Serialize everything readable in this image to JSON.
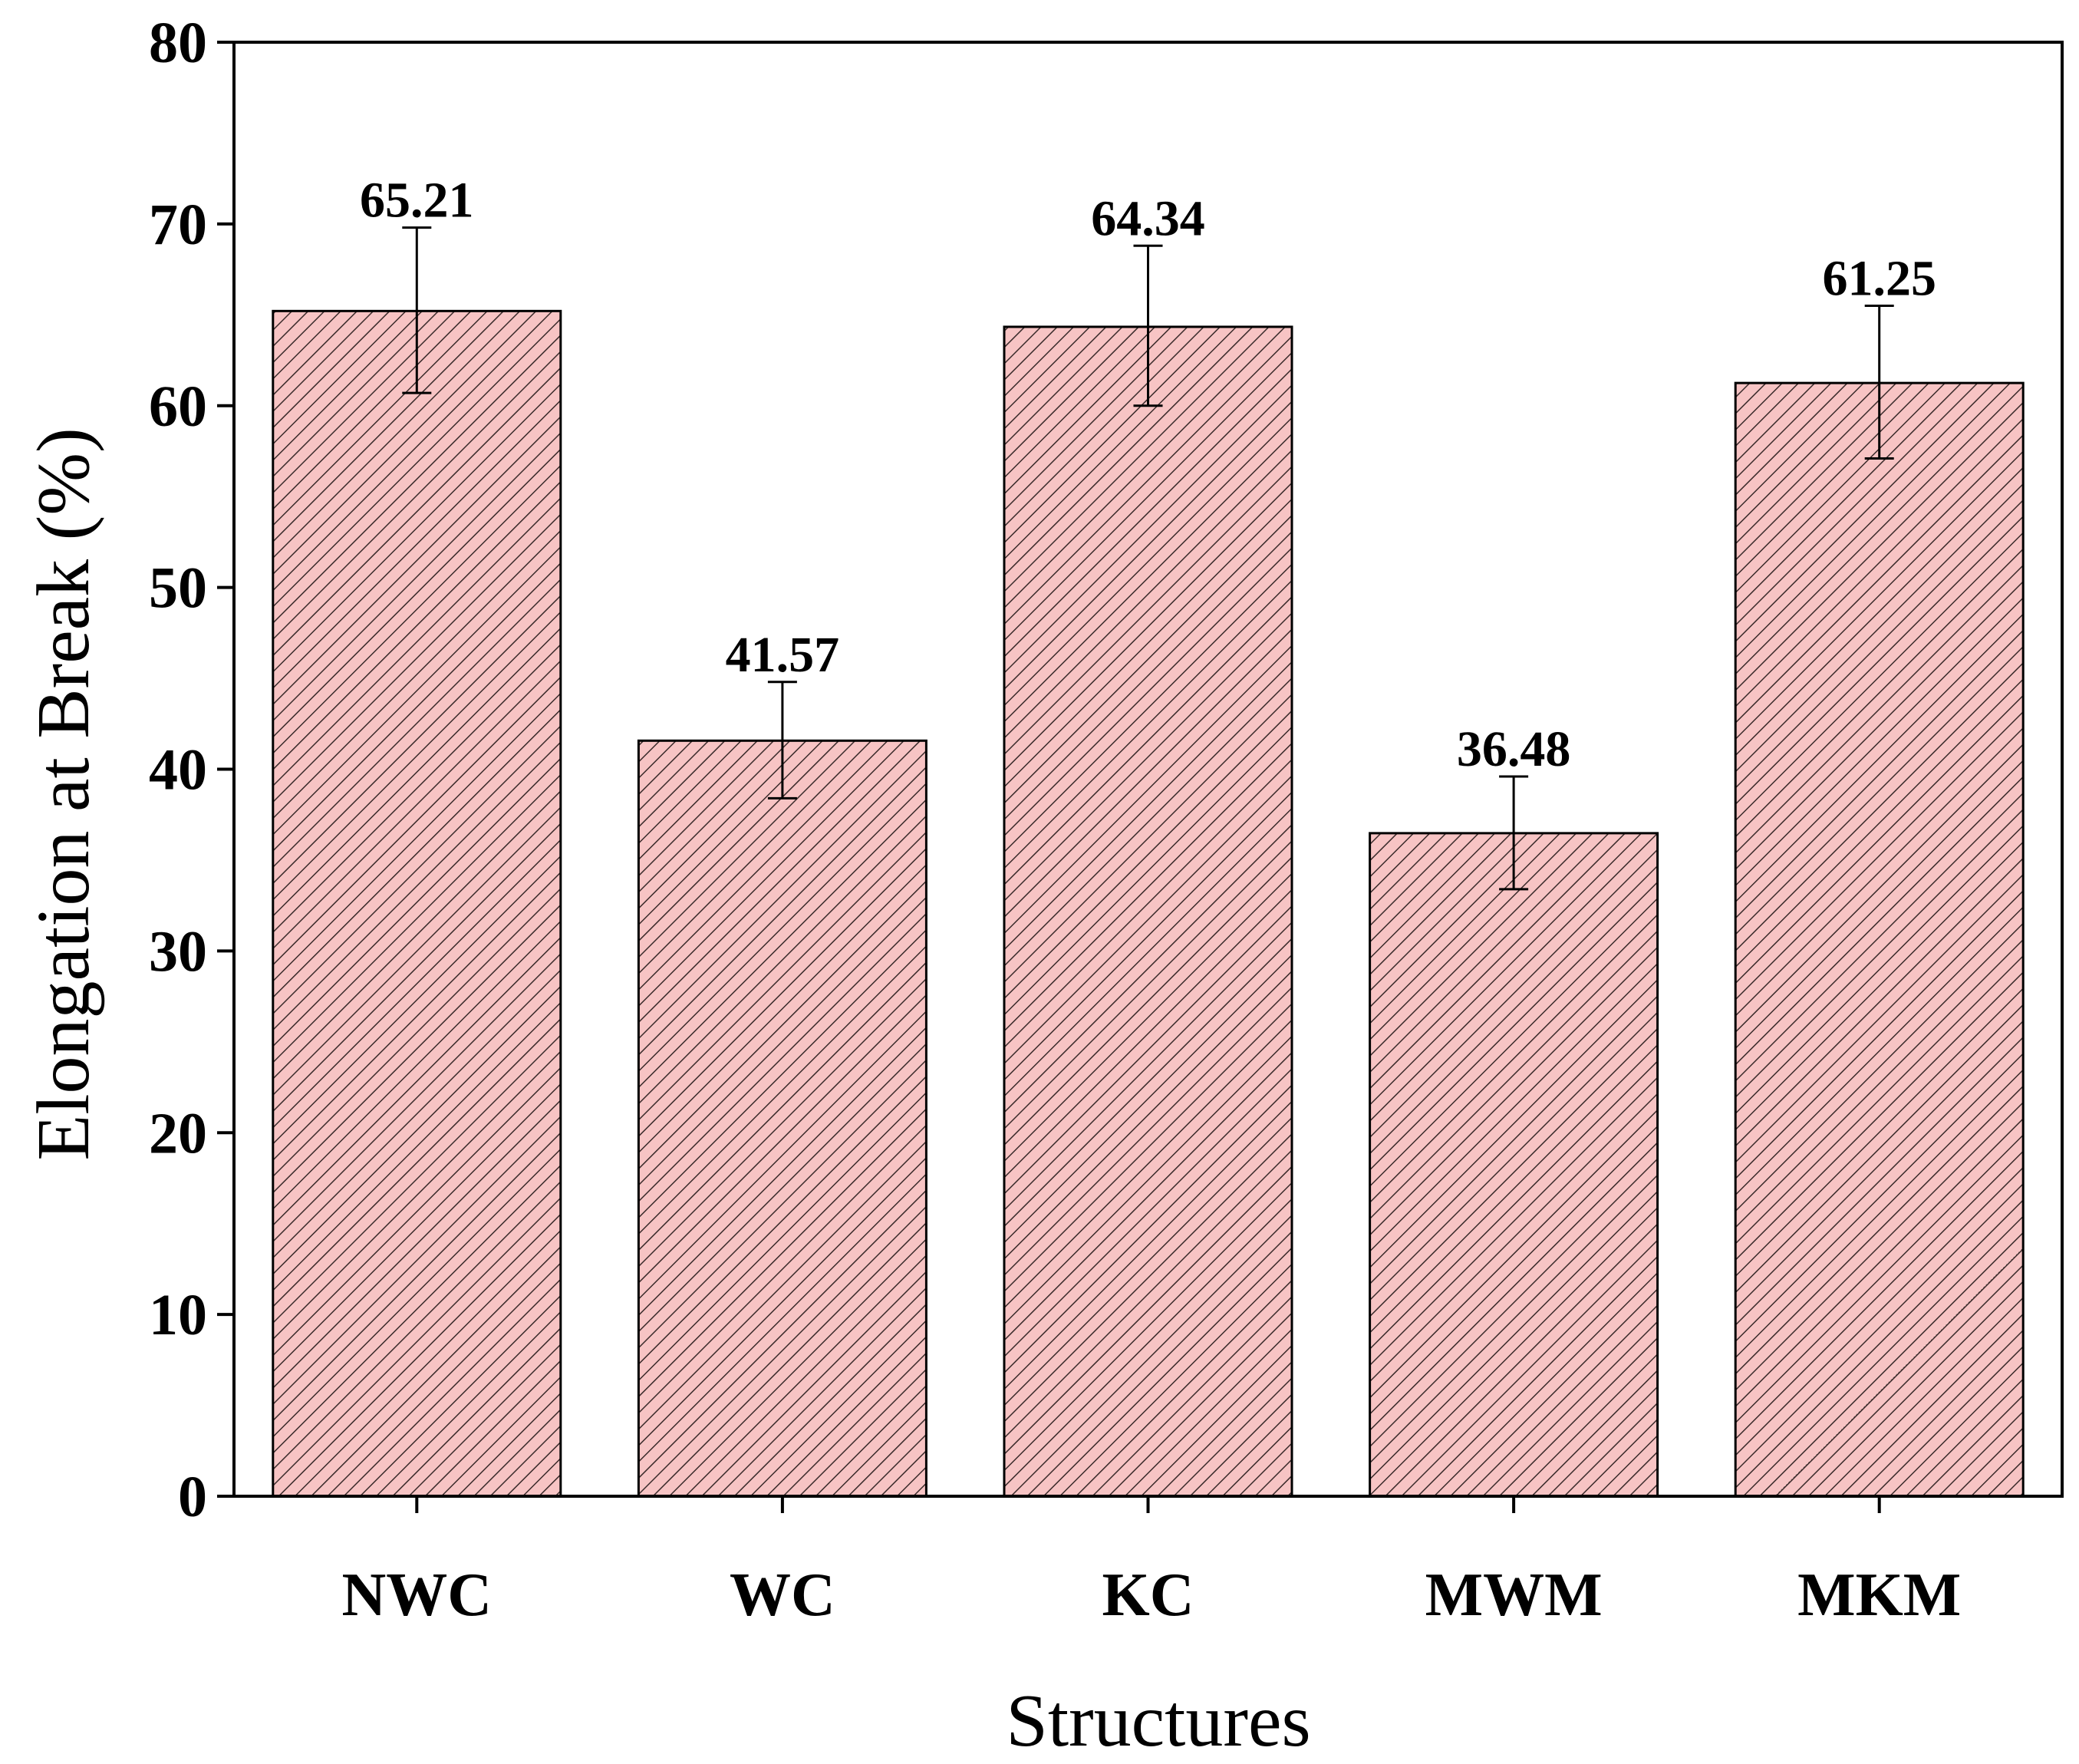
{
  "chart_data": {
    "type": "bar",
    "title": "",
    "xlabel": "Structures",
    "ylabel": "Elongation at Break (%)",
    "categories": [
      "NWC",
      "WC",
      "KC",
      "MWM",
      "MKM"
    ],
    "values": [
      65.21,
      41.57,
      64.34,
      36.48,
      61.25
    ],
    "error_upper": [
      69.8,
      44.8,
      68.8,
      39.6,
      65.5
    ],
    "error_lower": [
      60.7,
      38.4,
      60.0,
      33.4,
      57.1
    ],
    "data_labels": [
      "65.21",
      "41.57",
      "64.34",
      "36.48",
      "61.25"
    ],
    "ylim": [
      0,
      80
    ],
    "yticks": [
      0,
      10,
      20,
      30,
      40,
      50,
      60,
      70,
      80
    ],
    "grid": false,
    "legend": "none",
    "bar_fill": "#f7c4c4",
    "bar_hatch": "#3a2a2a",
    "axis_color": "#000000"
  }
}
